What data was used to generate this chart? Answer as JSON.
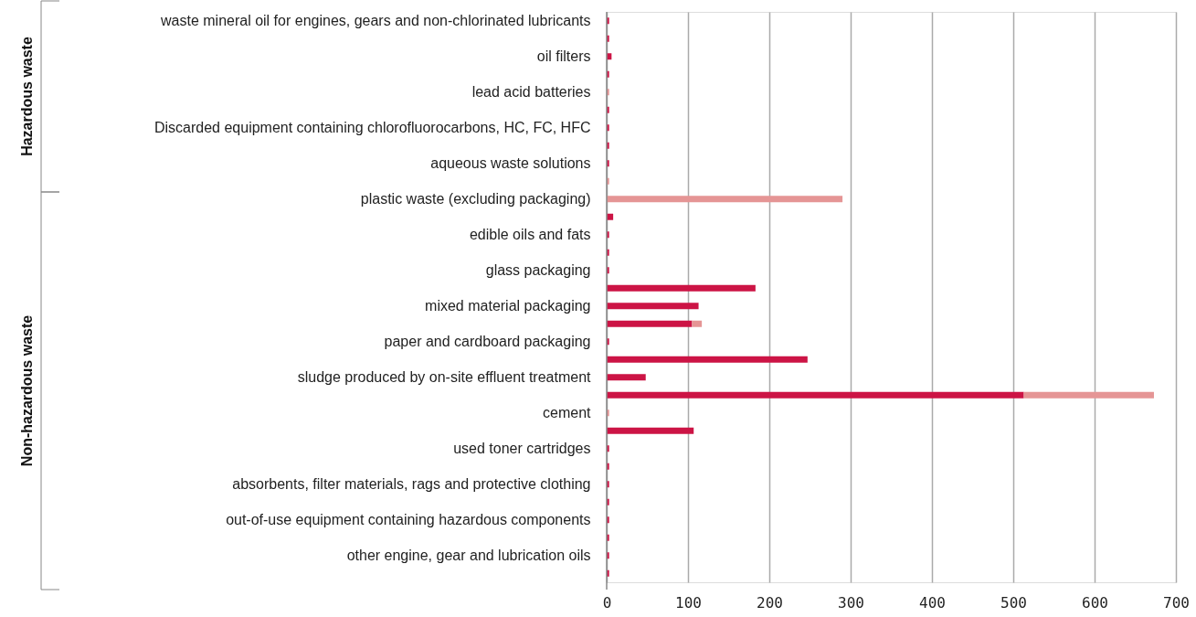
{
  "chart_data": {
    "type": "bar",
    "orientation": "horizontal",
    "stacked": true,
    "categories": [
      "waste mineral oil for engines, gears and non-chlorinated lubricants",
      null,
      "oil filters",
      null,
      "lead acid batteries",
      null,
      "Discarded equipment containing chlorofluorocarbons, HC, FC, HFC",
      null,
      "aqueous waste solutions",
      null,
      "plastic waste (excluding packaging)",
      null,
      "edible oils and fats",
      null,
      "glass packaging",
      null,
      "mixed material packaging",
      null,
      "paper and cardboard packaging",
      null,
      "sludge produced by on-site effluent treatment",
      null,
      "cement",
      null,
      "used toner cartridges",
      null,
      "absorbents, filter materials, rags and protective clothing",
      null,
      "out-of-use equipment containing hazardous components",
      null,
      "other engine, gear and lubrication oils",
      null
    ],
    "series": [
      {
        "color": "#cc1445",
        "values": [
          3,
          3,
          6,
          3,
          null,
          3,
          3,
          3,
          3,
          null,
          null,
          8,
          3,
          3,
          3,
          183,
          113,
          105,
          3,
          247,
          48,
          513,
          null,
          107,
          3,
          3,
          3,
          3,
          3,
          3,
          3,
          3
        ]
      },
      {
        "color": "#e59595",
        "values": [
          null,
          null,
          null,
          null,
          3,
          null,
          null,
          null,
          null,
          3,
          290,
          null,
          null,
          null,
          null,
          null,
          null,
          12,
          null,
          null,
          null,
          160,
          3,
          null,
          null,
          null,
          null,
          null,
          null,
          null,
          null,
          null
        ]
      }
    ],
    "xlim": [
      0,
      700
    ],
    "xticks": [
      0,
      100,
      200,
      300,
      400,
      500,
      600,
      700
    ],
    "grid": "x",
    "legend": false,
    "annotations": [
      "Hazardous waste",
      "Non-hazardous waste"
    ]
  }
}
